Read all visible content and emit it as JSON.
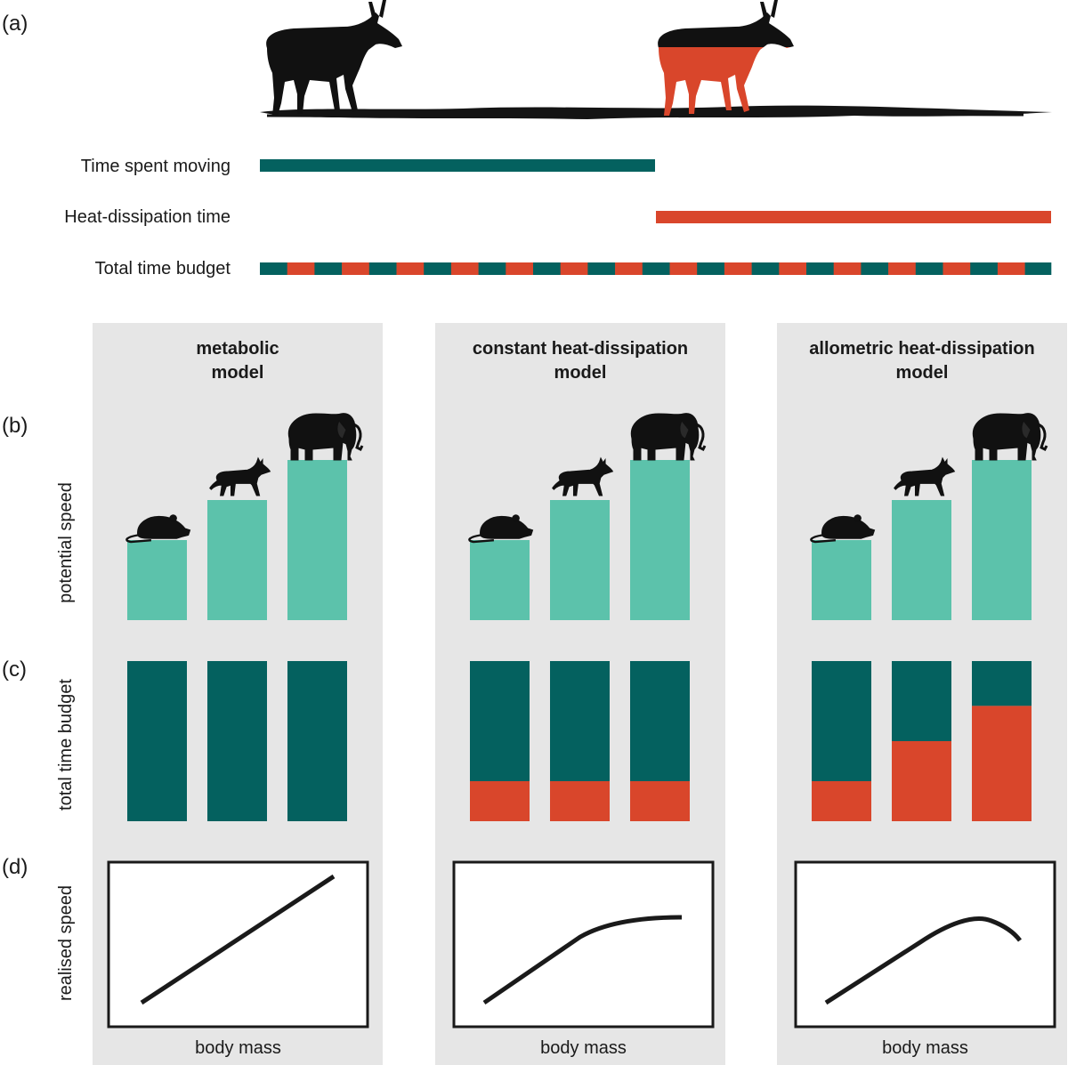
{
  "figure": {
    "panel_labels": {
      "a": "(a)",
      "b": "(b)",
      "c": "(c)",
      "d": "(d)"
    },
    "colors": {
      "teal_dark": "#04615f",
      "teal_light": "#5cc2ab",
      "orange": "#d9462b",
      "panel_bg": "#e6e6e6",
      "silhouette": "#111111"
    },
    "panel_a": {
      "rows": [
        {
          "label": "Time spent moving",
          "kind": "moving"
        },
        {
          "label": "Heat-dissipation time",
          "kind": "heat"
        },
        {
          "label": "Total time budget",
          "kind": "total"
        }
      ],
      "icons": [
        "antelope-walking-icon",
        "antelope-overheated-icon"
      ]
    },
    "axis_labels": {
      "b": "potential speed",
      "c": "total time budget",
      "d": "realised speed",
      "x": "body mass"
    },
    "models": [
      {
        "title_line1": "metabolic",
        "title_line2": "model",
        "potential_speed": [
          0.5,
          0.75,
          1.0
        ],
        "heat_fraction": [
          0,
          0,
          0
        ],
        "curve": "linear"
      },
      {
        "title_line1": "constant heat-dissipation",
        "title_line2": "model",
        "potential_speed": [
          0.5,
          0.75,
          1.0
        ],
        "heat_fraction": [
          0.25,
          0.25,
          0.25
        ],
        "curve": "saturating"
      },
      {
        "title_line1": "allometric heat-dissipation",
        "title_line2": "model",
        "potential_speed": [
          0.5,
          0.75,
          1.0
        ],
        "heat_fraction": [
          0.25,
          0.5,
          0.72
        ],
        "curve": "hump"
      }
    ],
    "animals": [
      "mouse-icon",
      "dog-icon",
      "elephant-icon"
    ]
  }
}
